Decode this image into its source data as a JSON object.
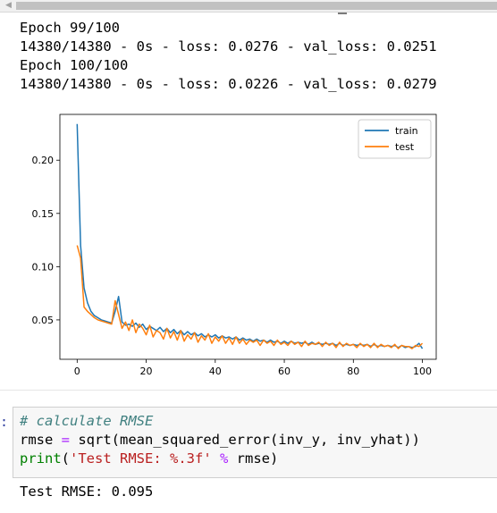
{
  "output_top": {
    "lines": [
      "Epoch 99/100",
      "14380/14380 - 0s - loss: 0.0276 - val_loss: 0.0251",
      "Epoch 100/100",
      "14380/14380 - 0s - loss: 0.0226 - val_loss: 0.0279"
    ]
  },
  "chart_data": {
    "type": "line",
    "title": "",
    "xlabel": "",
    "ylabel": "",
    "xlim": [
      -5,
      104
    ],
    "ylim": [
      0.013,
      0.243
    ],
    "x_ticks": [
      0,
      20,
      40,
      60,
      80,
      100
    ],
    "x_tick_labels": [
      "0",
      "20",
      "40",
      "60",
      "80",
      "100"
    ],
    "y_ticks": [
      0.05,
      0.1,
      0.15,
      0.2
    ],
    "y_tick_labels": [
      "0.05",
      "0.10",
      "0.15",
      "0.20"
    ],
    "grid": false,
    "legend": "upper-right",
    "series": [
      {
        "name": "train",
        "color": "#1f77b4",
        "values": [
          0.234,
          0.12,
          0.08,
          0.066,
          0.058,
          0.054,
          0.052,
          0.05,
          0.049,
          0.048,
          0.047,
          0.058,
          0.072,
          0.048,
          0.045,
          0.046,
          0.044,
          0.047,
          0.043,
          0.046,
          0.041,
          0.044,
          0.042,
          0.04,
          0.043,
          0.039,
          0.042,
          0.038,
          0.041,
          0.037,
          0.04,
          0.036,
          0.039,
          0.036,
          0.038,
          0.035,
          0.037,
          0.034,
          0.036,
          0.034,
          0.036,
          0.033,
          0.035,
          0.033,
          0.034,
          0.032,
          0.034,
          0.031,
          0.033,
          0.031,
          0.032,
          0.03,
          0.032,
          0.03,
          0.031,
          0.029,
          0.031,
          0.029,
          0.03,
          0.028,
          0.03,
          0.028,
          0.03,
          0.028,
          0.029,
          0.028,
          0.029,
          0.027,
          0.029,
          0.027,
          0.028,
          0.027,
          0.028,
          0.027,
          0.028,
          0.026,
          0.028,
          0.026,
          0.027,
          0.026,
          0.027,
          0.026,
          0.027,
          0.026,
          0.027,
          0.025,
          0.027,
          0.025,
          0.026,
          0.025,
          0.026,
          0.025,
          0.026,
          0.024,
          0.026,
          0.024,
          0.025,
          0.024,
          0.025,
          0.028,
          0.023
        ]
      },
      {
        "name": "test",
        "color": "#ff7f0e",
        "values": [
          0.12,
          0.108,
          0.062,
          0.058,
          0.055,
          0.052,
          0.05,
          0.049,
          0.048,
          0.047,
          0.046,
          0.068,
          0.055,
          0.042,
          0.048,
          0.04,
          0.05,
          0.038,
          0.046,
          0.042,
          0.036,
          0.045,
          0.034,
          0.04,
          0.038,
          0.032,
          0.042,
          0.033,
          0.039,
          0.031,
          0.04,
          0.03,
          0.036,
          0.032,
          0.038,
          0.029,
          0.035,
          0.031,
          0.037,
          0.028,
          0.034,
          0.03,
          0.035,
          0.028,
          0.033,
          0.027,
          0.034,
          0.028,
          0.032,
          0.027,
          0.031,
          0.029,
          0.031,
          0.026,
          0.031,
          0.028,
          0.03,
          0.026,
          0.031,
          0.027,
          0.029,
          0.026,
          0.03,
          0.027,
          0.029,
          0.025,
          0.03,
          0.026,
          0.028,
          0.027,
          0.029,
          0.025,
          0.029,
          0.026,
          0.028,
          0.024,
          0.029,
          0.025,
          0.028,
          0.026,
          0.027,
          0.024,
          0.028,
          0.025,
          0.027,
          0.024,
          0.028,
          0.024,
          0.027,
          0.025,
          0.026,
          0.024,
          0.027,
          0.023,
          0.026,
          0.025,
          0.025,
          0.023,
          0.026,
          0.025,
          0.028
        ]
      }
    ]
  },
  "code_cell": {
    "prompt": ":",
    "comment": "# calculate RMSE",
    "line2": {
      "lhs": "rmse ",
      "eq": "=",
      "rhs": " sqrt(mean_squared_error(inv_y, inv_yhat))"
    },
    "line3": {
      "fn": "print",
      "open": "(",
      "str": "'Test RMSE: %.3f'",
      "mid": " ",
      "pct": "%",
      "end": " rmse)"
    }
  },
  "output_bottom": {
    "text": "Test RMSE: 0.095"
  }
}
